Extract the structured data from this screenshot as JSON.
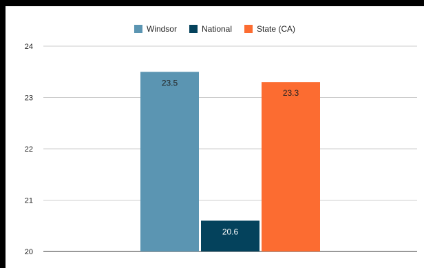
{
  "chart_data": {
    "type": "bar",
    "categories": [
      ""
    ],
    "series": [
      {
        "name": "Windsor",
        "values": [
          23.5
        ],
        "color": "#5b95b2"
      },
      {
        "name": "National",
        "values": [
          20.6
        ],
        "color": "#04425c"
      },
      {
        "name": "State (CA)",
        "values": [
          23.3
        ],
        "color": "#fc6c31"
      }
    ],
    "ylim": [
      20,
      24
    ],
    "yticks": [
      20,
      21,
      22,
      23,
      24
    ],
    "grid": true,
    "legend_position": "top",
    "data_label_colors": [
      "#222222",
      "#ffffff",
      "#222222"
    ]
  }
}
